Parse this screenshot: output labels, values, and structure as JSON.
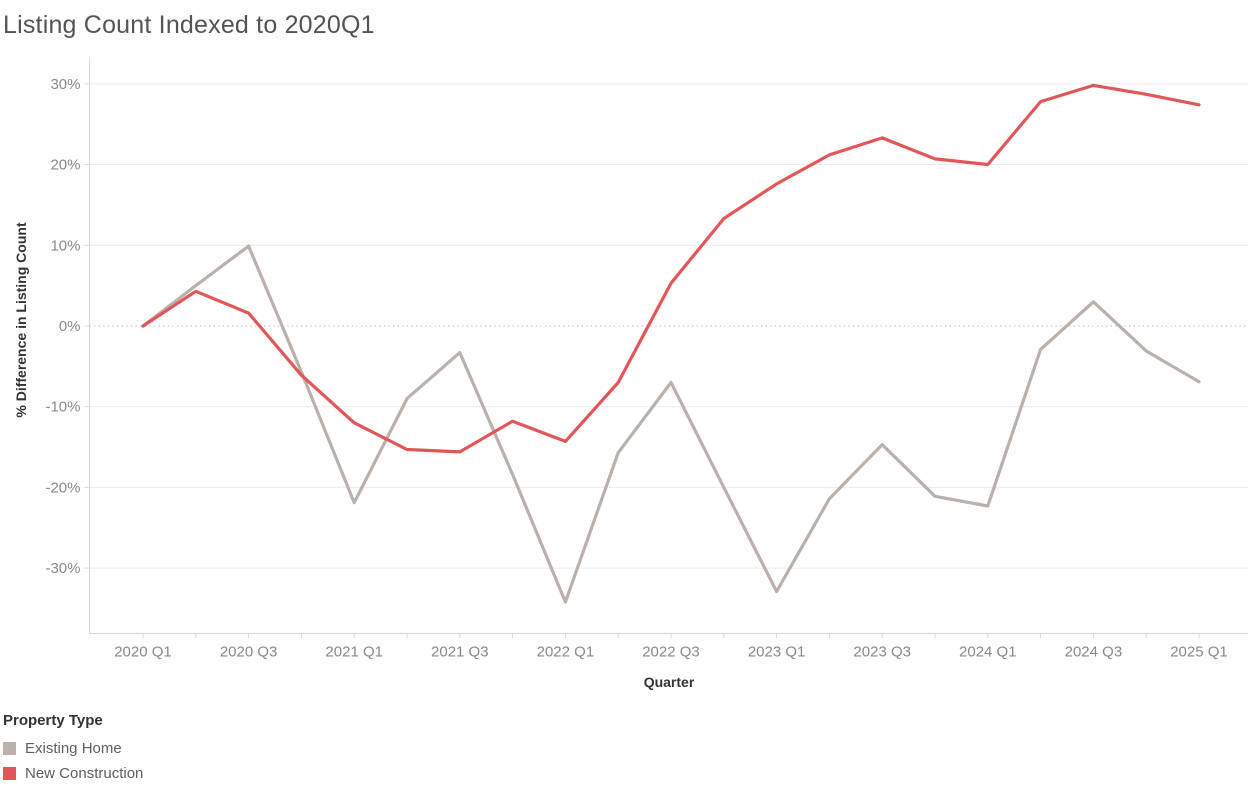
{
  "title": "Listing Count Indexed to 2020Q1",
  "axes": {
    "x_title": "Quarter",
    "y_title": "% Difference in Listing Count"
  },
  "legend": {
    "title": "Property Type",
    "items": [
      {
        "label": "Existing Home",
        "color": "#bab0ac"
      },
      {
        "label": "New Construction",
        "color": "#e15759"
      }
    ]
  },
  "colors": {
    "grid_line": "#ececec",
    "zero_line": "#bdbdbd",
    "axis_line": "#d8d8d8",
    "tick_label": "#898989",
    "axis_title": "#333333",
    "title": "#545454"
  },
  "chart_data": {
    "type": "line",
    "title": "Listing Count Indexed to 2020Q1",
    "xlabel": "Quarter",
    "ylabel": "% Difference in Listing Count",
    "categories": [
      "2020 Q1",
      "2020 Q2",
      "2020 Q3",
      "2020 Q4",
      "2021 Q1",
      "2021 Q2",
      "2021 Q3",
      "2021 Q4",
      "2022 Q1",
      "2022 Q2",
      "2022 Q3",
      "2022 Q4",
      "2023 Q1",
      "2023 Q2",
      "2023 Q3",
      "2023 Q4",
      "2024 Q1",
      "2024 Q2",
      "2024 Q3",
      "2024 Q4",
      "2025 Q1"
    ],
    "x_tick_label_every": 2,
    "x_tick_labels_shown": [
      "2020 Q1",
      "2020 Q3",
      "2021 Q1",
      "2021 Q3",
      "2022 Q1",
      "2022 Q3",
      "2023 Q1",
      "2023 Q3",
      "2024 Q1",
      "2024 Q3",
      "2025 Q1"
    ],
    "series": [
      {
        "name": "Existing Home",
        "color": "#bab0ac",
        "values": [
          0,
          5.0,
          9.9,
          -5.7,
          -21.9,
          -9.0,
          -3.3,
          -18.4,
          -34.2,
          -15.7,
          -7.0,
          -20.0,
          -32.9,
          -21.4,
          -14.7,
          -21.1,
          -22.3,
          -2.9,
          3.0,
          -3.1,
          -6.9
        ]
      },
      {
        "name": "New Construction",
        "color": "#e15759",
        "values": [
          0,
          4.3,
          1.6,
          -6.1,
          -12.0,
          -15.3,
          -15.6,
          -11.8,
          -14.3,
          -7.0,
          5.3,
          13.3,
          17.6,
          21.2,
          23.3,
          20.7,
          20.0,
          27.8,
          29.8,
          28.7,
          27.4
        ]
      }
    ],
    "y_ticks": [
      30,
      20,
      10,
      0,
      -10,
      -20,
      -30
    ],
    "y_tick_suffix": "%",
    "ylim": [
      -38.1,
      33.2
    ],
    "grid": true,
    "zero_line_style": "dotted",
    "legend_position": "bottom-left",
    "legend_title": "Property Type"
  }
}
